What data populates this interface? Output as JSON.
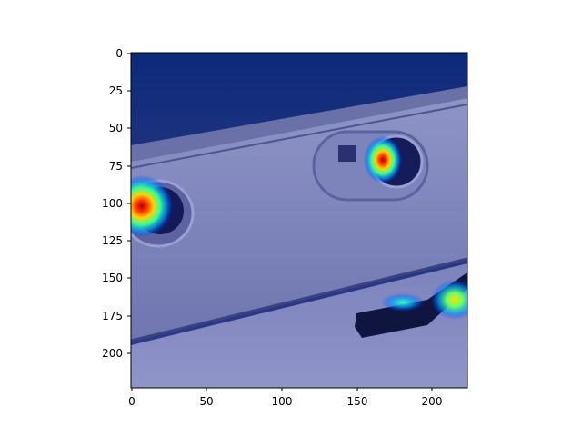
{
  "figure": {
    "x_ticks": [
      "0",
      "50",
      "100",
      "150",
      "200"
    ],
    "y_ticks": [
      "0",
      "25",
      "50",
      "75",
      "100",
      "125",
      "150",
      "175",
      "200"
    ]
  },
  "chart_data": {
    "type": "heatmap",
    "image_size": [
      224,
      224
    ],
    "xlim": [
      0,
      224
    ],
    "ylim": [
      224,
      0
    ],
    "x_ticks": [
      0,
      50,
      100,
      150,
      200
    ],
    "y_ticks": [
      0,
      25,
      50,
      75,
      100,
      125,
      150,
      175,
      200
    ],
    "colormap": "jet",
    "hotspots": [
      {
        "x": 7,
        "y": 103,
        "level": "high"
      },
      {
        "x": 167,
        "y": 71,
        "level": "high"
      },
      {
        "x": 215,
        "y": 167,
        "level": "medium"
      },
      {
        "x": 180,
        "y": 170,
        "level": "low"
      }
    ]
  }
}
